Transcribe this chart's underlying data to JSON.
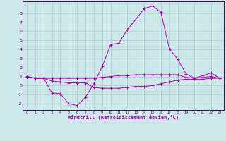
{
  "xlabel": "Windchill (Refroidissement éolien,°C)",
  "background_color": "#cce8ea",
  "grid_color": "#aacccc",
  "line_color": "#aa00aa",
  "x_data": [
    0,
    1,
    2,
    3,
    4,
    5,
    6,
    7,
    8,
    9,
    10,
    11,
    12,
    13,
    14,
    15,
    16,
    17,
    18,
    19,
    20,
    21,
    22,
    23
  ],
  "series1": [
    1.0,
    0.8,
    0.8,
    0.8,
    0.8,
    0.8,
    0.8,
    0.8,
    0.8,
    0.9,
    1.0,
    1.1,
    1.1,
    1.2,
    1.2,
    1.2,
    1.2,
    1.2,
    1.2,
    0.9,
    0.8,
    0.9,
    1.0,
    0.8
  ],
  "series2": [
    1.0,
    0.8,
    0.8,
    -0.8,
    -0.9,
    -2.0,
    -2.2,
    -1.3,
    0.2,
    2.1,
    4.5,
    4.7,
    6.2,
    7.3,
    8.5,
    8.8,
    8.1,
    4.1,
    2.9,
    1.3,
    0.8,
    1.1,
    1.4,
    0.8
  ],
  "series3": [
    1.0,
    0.8,
    0.8,
    0.5,
    0.4,
    0.3,
    0.3,
    0.3,
    -0.2,
    -0.3,
    -0.3,
    -0.3,
    -0.2,
    -0.1,
    -0.1,
    0.0,
    0.2,
    0.4,
    0.6,
    0.7,
    0.7,
    0.7,
    0.8,
    0.8
  ],
  "xlim": [
    -0.5,
    23.5
  ],
  "ylim": [
    -2.7,
    9.3
  ],
  "yticks": [
    -2,
    -1,
    0,
    1,
    2,
    3,
    4,
    5,
    6,
    7,
    8
  ],
  "xticks": [
    0,
    1,
    2,
    3,
    4,
    5,
    6,
    7,
    8,
    9,
    10,
    11,
    12,
    13,
    14,
    15,
    16,
    17,
    18,
    19,
    20,
    21,
    22,
    23
  ],
  "xtick_labels": [
    "0",
    "1",
    "2",
    "3",
    "4",
    "5",
    "6",
    "7",
    "8",
    "9",
    "10",
    "11",
    "12",
    "13",
    "14",
    "15",
    "16",
    "17",
    "18",
    "19",
    "20",
    "21",
    "22",
    "23"
  ]
}
